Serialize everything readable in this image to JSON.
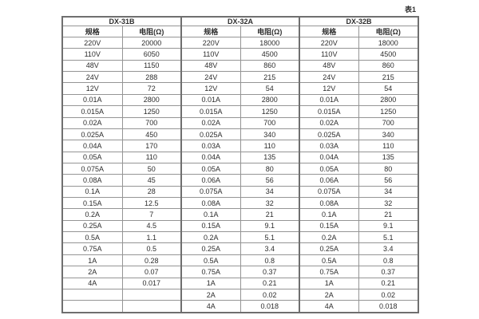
{
  "page": {
    "table_caption": "表1"
  },
  "colors": {
    "outer_border": "#6f6f6f",
    "grid_border": "#959595",
    "text": "#2d2d2d",
    "background": "#ffffff"
  },
  "table": {
    "column_groups": [
      {
        "label": "DX-31B"
      },
      {
        "label": "DX-32A"
      },
      {
        "label": "DX-32B"
      }
    ],
    "sub_headers": {
      "spec": "规格",
      "resistance": "电阻(Ω)"
    },
    "rows": [
      [
        "220V",
        "20000",
        "220V",
        "18000",
        "220V",
        "18000"
      ],
      [
        "110V",
        "6050",
        "110V",
        "4500",
        "110V",
        "4500"
      ],
      [
        "48V",
        "1150",
        "48V",
        "860",
        "48V",
        "860"
      ],
      [
        "24V",
        "288",
        "24V",
        "215",
        "24V",
        "215"
      ],
      [
        "12V",
        "72",
        "12V",
        "54",
        "12V",
        "54"
      ],
      [
        "0.01A",
        "2800",
        "0.01A",
        "2800",
        "0.01A",
        "2800"
      ],
      [
        "0.015A",
        "1250",
        "0.015A",
        "1250",
        "0.015A",
        "1250"
      ],
      [
        "0.02A",
        "700",
        "0.02A",
        "700",
        "0.02A",
        "700"
      ],
      [
        "0.025A",
        "450",
        "0.025A",
        "340",
        "0.025A",
        "340"
      ],
      [
        "0.04A",
        "170",
        "0.03A",
        "110",
        "0.03A",
        "110"
      ],
      [
        "0.05A",
        "110",
        "0.04A",
        "135",
        "0.04A",
        "135"
      ],
      [
        "0.075A",
        "50",
        "0.05A",
        "80",
        "0.05A",
        "80"
      ],
      [
        "0.08A",
        "45",
        "0.06A",
        "56",
        "0.06A",
        "56"
      ],
      [
        "0.1A",
        "28",
        "0.075A",
        "34",
        "0.075A",
        "34"
      ],
      [
        "0.15A",
        "12.5",
        "0.08A",
        "32",
        "0.08A",
        "32"
      ],
      [
        "0.2A",
        "7",
        "0.1A",
        "21",
        "0.1A",
        "21"
      ],
      [
        "0.25A",
        "4.5",
        "0.15A",
        "9.1",
        "0.15A",
        "9.1"
      ],
      [
        "0.5A",
        "1.1",
        "0.2A",
        "5.1",
        "0.2A",
        "5.1"
      ],
      [
        "0.75A",
        "0.5",
        "0.25A",
        "3.4",
        "0.25A",
        "3.4"
      ],
      [
        "1A",
        "0.28",
        "0.5A",
        "0.8",
        "0.5A",
        "0.8"
      ],
      [
        "2A",
        "0.07",
        "0.75A",
        "0.37",
        "0.75A",
        "0.37"
      ],
      [
        "4A",
        "0.017",
        "1A",
        "0.21",
        "1A",
        "0.21"
      ],
      [
        "",
        "",
        "2A",
        "0.02",
        "2A",
        "0.02"
      ],
      [
        "",
        "",
        "4A",
        "0.018",
        "4A",
        "0.018"
      ]
    ]
  }
}
